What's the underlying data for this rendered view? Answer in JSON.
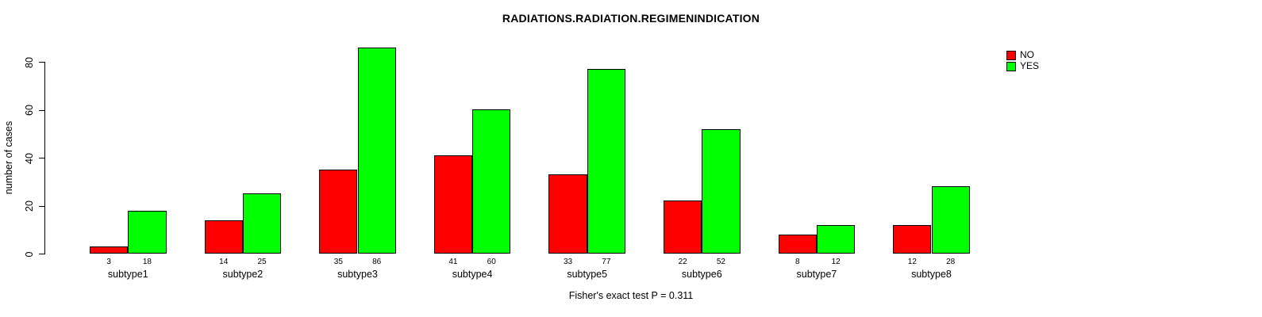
{
  "chart_data": {
    "type": "bar",
    "title": "RADIATIONS.RADIATION.REGIMENINDICATION",
    "xlabel": "",
    "ylabel": "number of cases",
    "categories": [
      "subtype1",
      "subtype2",
      "subtype3",
      "subtype4",
      "subtype5",
      "subtype6",
      "subtype7",
      "subtype8"
    ],
    "series": [
      {
        "name": "NO",
        "color": "#ff0000",
        "values": [
          3,
          14,
          35,
          41,
          33,
          22,
          8,
          12
        ]
      },
      {
        "name": "YES",
        "color": "#00ff00",
        "values": [
          18,
          25,
          86,
          60,
          77,
          52,
          12,
          28
        ]
      }
    ],
    "bar_value_labels_shown": true,
    "yticks": [
      0,
      20,
      40,
      60,
      80
    ],
    "ylim": [
      0,
      86
    ],
    "grid": false,
    "legend_position": "top-right",
    "annotation": "Fisher's exact test P = 0.311"
  }
}
